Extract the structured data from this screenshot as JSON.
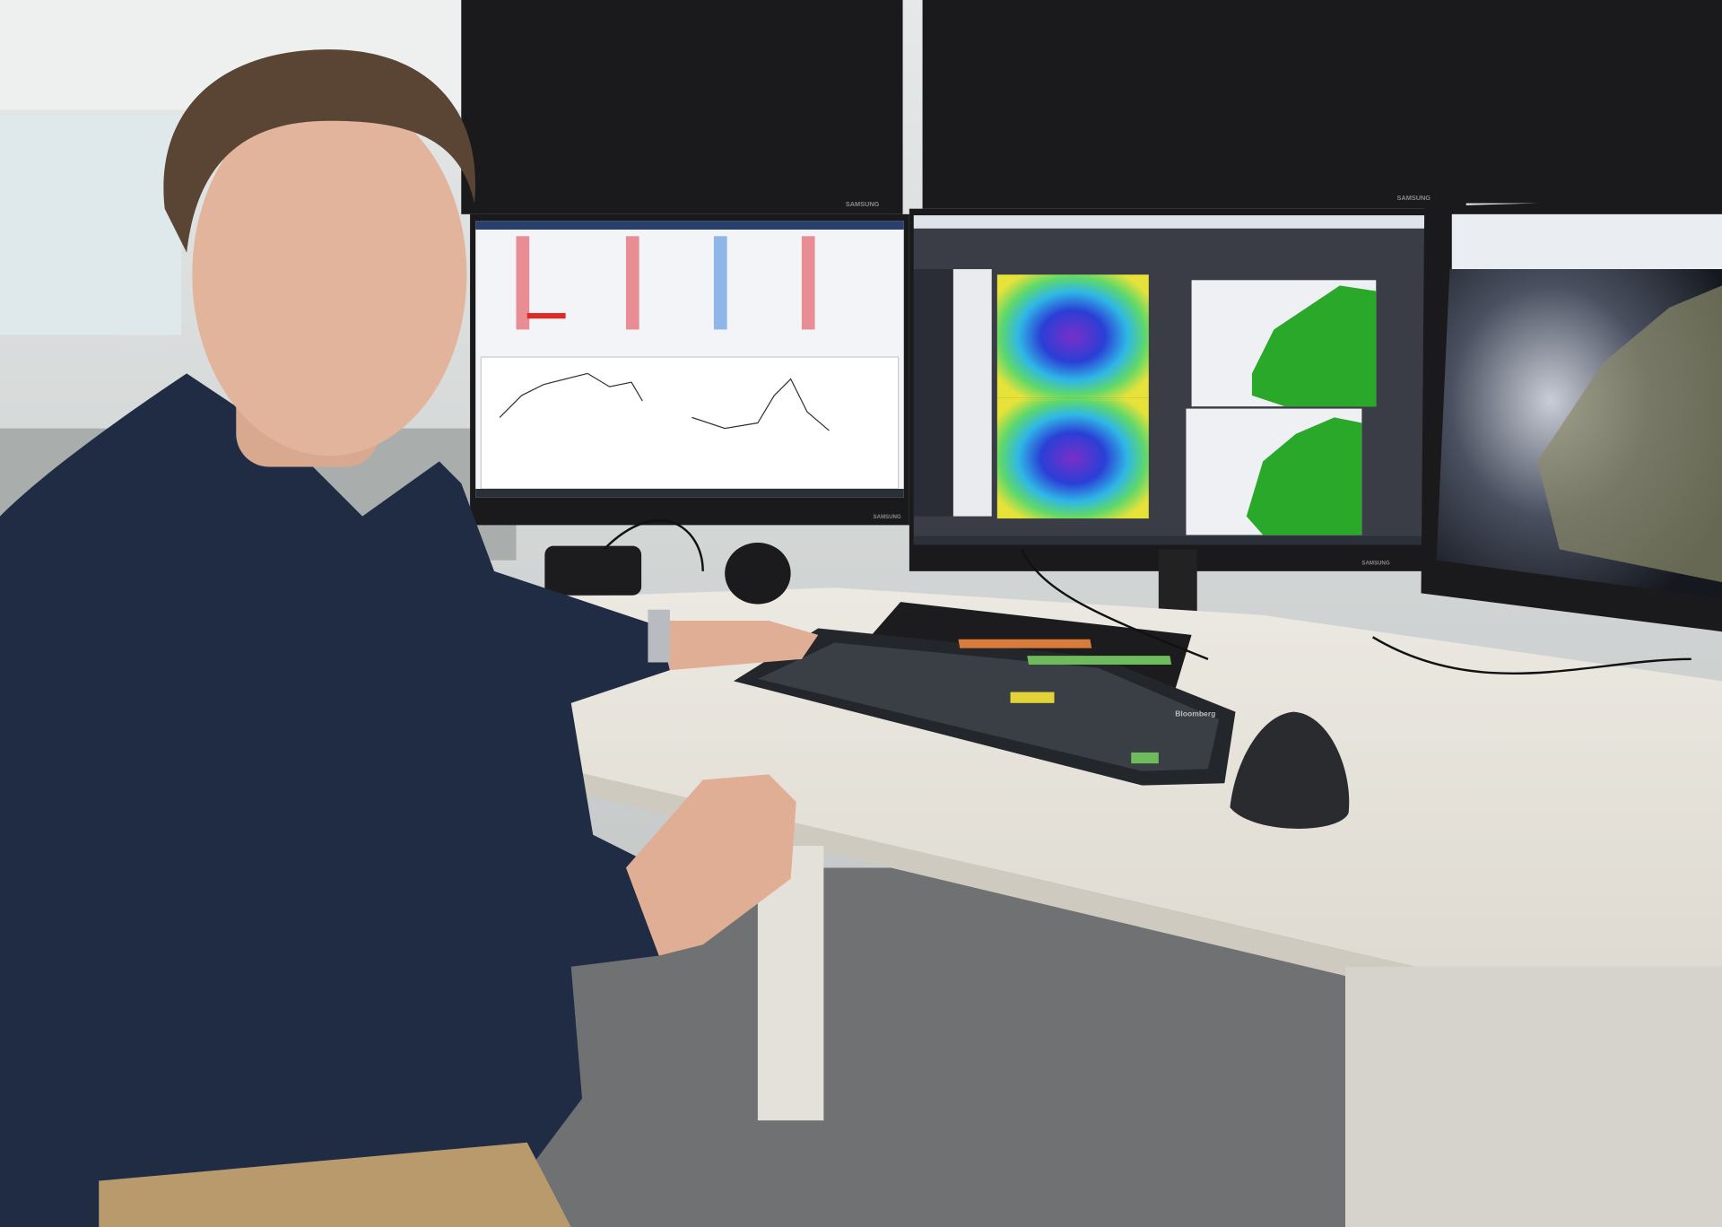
{
  "scene": {
    "description_type": "photo",
    "monitor_brand": "SAMSUNG",
    "keyboard_brand": "Bloomberg"
  },
  "colors": {
    "wall": "#d9dcdb",
    "desk": "#e9e6df",
    "shirt": "#1f2c44",
    "carpet": "#6f7172",
    "bezel": "#1a1a1c",
    "map_green": "#29a82a",
    "heatmap_blue": "#2a3fd6",
    "heatmap_yellow": "#e6e23a"
  },
  "icons": [
    "monitor",
    "keyboard",
    "mouse",
    "headphones",
    "speaker"
  ]
}
